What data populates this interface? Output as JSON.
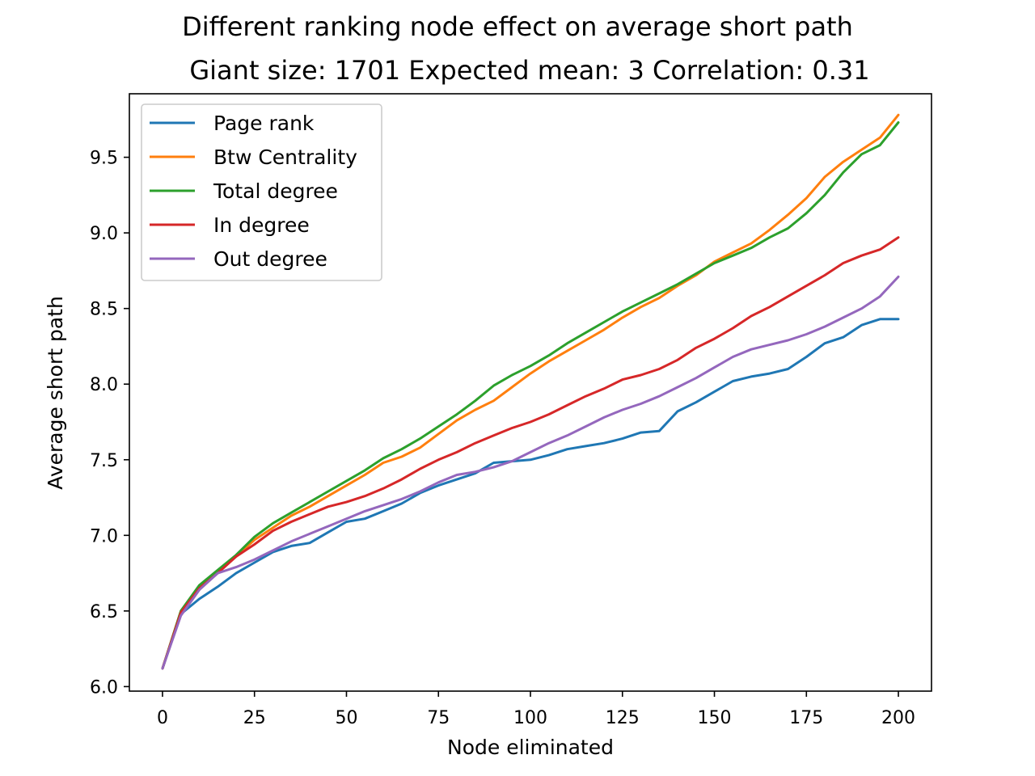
{
  "chart_data": {
    "type": "line",
    "title": "Different ranking node effect on average short path",
    "subtitle": "Giant size: 1701  Expected mean: 3  Correlation: 0.31",
    "xlabel": "Node eliminated",
    "ylabel": "Average short path",
    "xlim": [
      -9,
      209
    ],
    "ylim": [
      5.97,
      9.92
    ],
    "xticks": [
      0,
      25,
      50,
      75,
      100,
      125,
      150,
      175,
      200
    ],
    "yticks": [
      6.0,
      6.5,
      7.0,
      7.5,
      8.0,
      8.5,
      9.0,
      9.5
    ],
    "ytick_labels": [
      "6.0",
      "6.5",
      "7.0",
      "7.5",
      "8.0",
      "8.5",
      "9.0",
      "9.5"
    ],
    "grid": false,
    "legend_position": "upper-left",
    "x": [
      0,
      5,
      10,
      15,
      20,
      25,
      30,
      35,
      40,
      45,
      50,
      55,
      60,
      65,
      70,
      75,
      80,
      85,
      90,
      95,
      100,
      105,
      110,
      115,
      120,
      125,
      130,
      135,
      140,
      145,
      150,
      155,
      160,
      165,
      170,
      175,
      180,
      185,
      190,
      195,
      200
    ],
    "series": [
      {
        "name": "Page rank",
        "color": "#1f77b4",
        "values": [
          6.12,
          6.48,
          6.58,
          6.66,
          6.75,
          6.82,
          6.89,
          6.93,
          6.95,
          7.02,
          7.09,
          7.11,
          7.16,
          7.21,
          7.28,
          7.33,
          7.37,
          7.41,
          7.48,
          7.49,
          7.5,
          7.53,
          7.57,
          7.59,
          7.61,
          7.64,
          7.68,
          7.69,
          7.82,
          7.88,
          7.95,
          8.02,
          8.05,
          8.07,
          8.1,
          8.18,
          8.27,
          8.31,
          8.39,
          8.43,
          8.43
        ]
      },
      {
        "name": "Btw Centrality",
        "color": "#ff7f0e",
        "values": [
          6.12,
          6.5,
          6.66,
          6.76,
          6.86,
          6.97,
          7.05,
          7.13,
          7.19,
          7.26,
          7.33,
          7.4,
          7.48,
          7.52,
          7.58,
          7.67,
          7.76,
          7.83,
          7.89,
          7.98,
          8.07,
          8.15,
          8.22,
          8.29,
          8.36,
          8.44,
          8.51,
          8.57,
          8.65,
          8.72,
          8.81,
          8.87,
          8.93,
          9.02,
          9.12,
          9.23,
          9.37,
          9.47,
          9.55,
          9.63,
          9.78
        ]
      },
      {
        "name": "Total degree",
        "color": "#2ca02c",
        "values": [
          6.12,
          6.5,
          6.67,
          6.77,
          6.87,
          6.99,
          7.08,
          7.15,
          7.22,
          7.29,
          7.36,
          7.43,
          7.51,
          7.57,
          7.64,
          7.72,
          7.8,
          7.89,
          7.99,
          8.06,
          8.12,
          8.19,
          8.27,
          8.34,
          8.41,
          8.48,
          8.54,
          8.6,
          8.66,
          8.73,
          8.8,
          8.85,
          8.9,
          8.97,
          9.03,
          9.13,
          9.25,
          9.4,
          9.52,
          9.58,
          9.73
        ]
      },
      {
        "name": "In degree",
        "color": "#d62728",
        "values": [
          6.12,
          6.49,
          6.65,
          6.75,
          6.86,
          6.94,
          7.03,
          7.09,
          7.14,
          7.19,
          7.22,
          7.26,
          7.31,
          7.37,
          7.44,
          7.5,
          7.55,
          7.61,
          7.66,
          7.71,
          7.75,
          7.8,
          7.86,
          7.92,
          7.97,
          8.03,
          8.06,
          8.1,
          8.16,
          8.24,
          8.3,
          8.37,
          8.45,
          8.51,
          8.58,
          8.65,
          8.72,
          8.8,
          8.85,
          8.89,
          8.97
        ]
      },
      {
        "name": "Out degree",
        "color": "#9467bd",
        "values": [
          6.12,
          6.47,
          6.64,
          6.75,
          6.79,
          6.84,
          6.9,
          6.96,
          7.01,
          7.06,
          7.11,
          7.16,
          7.2,
          7.24,
          7.29,
          7.35,
          7.4,
          7.42,
          7.45,
          7.49,
          7.55,
          7.61,
          7.66,
          7.72,
          7.78,
          7.83,
          7.87,
          7.92,
          7.98,
          8.04,
          8.11,
          8.18,
          8.23,
          8.26,
          8.29,
          8.33,
          8.38,
          8.44,
          8.5,
          8.58,
          8.71
        ]
      }
    ]
  }
}
